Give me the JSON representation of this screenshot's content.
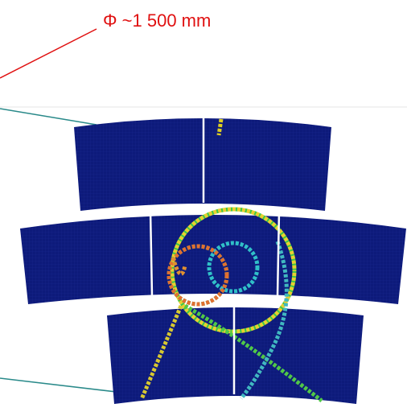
{
  "annotation": "Φ ~1 500 mm"
}
